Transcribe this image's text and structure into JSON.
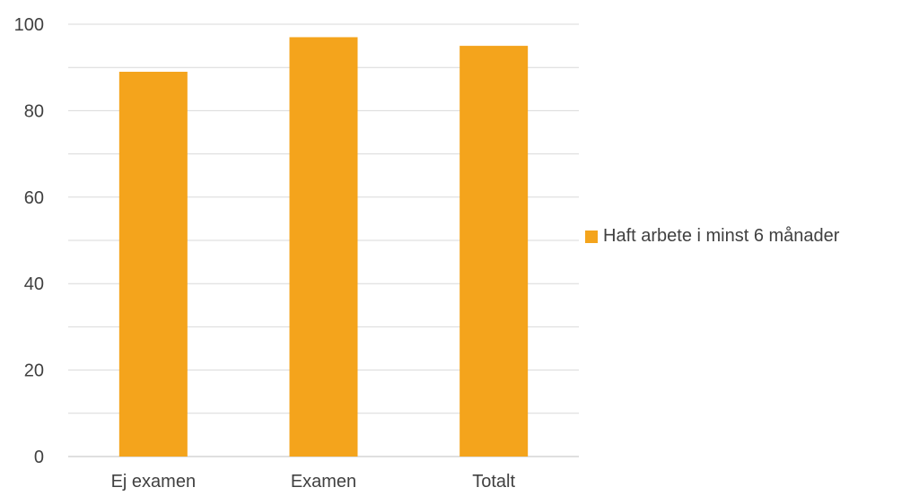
{
  "chart_data": {
    "type": "bar",
    "categories": [
      "Ej examen",
      "Examen",
      "Totalt"
    ],
    "series": [
      {
        "name": "Haft arbete i minst 6 månader",
        "values": [
          89,
          97,
          95
        ],
        "color": "#F4A41C"
      }
    ],
    "ylim": [
      0,
      100
    ],
    "yticks": [
      "0",
      "20",
      "40",
      "60",
      "80",
      "100"
    ],
    "ytick_values": [
      0,
      20,
      40,
      60,
      80,
      100
    ],
    "minor_grid_values": [
      10,
      30,
      50,
      70,
      90
    ],
    "grid": true,
    "legend_position": "right",
    "gridline_color": "#D9D9D9",
    "axis_color": "#BFBFBF"
  }
}
